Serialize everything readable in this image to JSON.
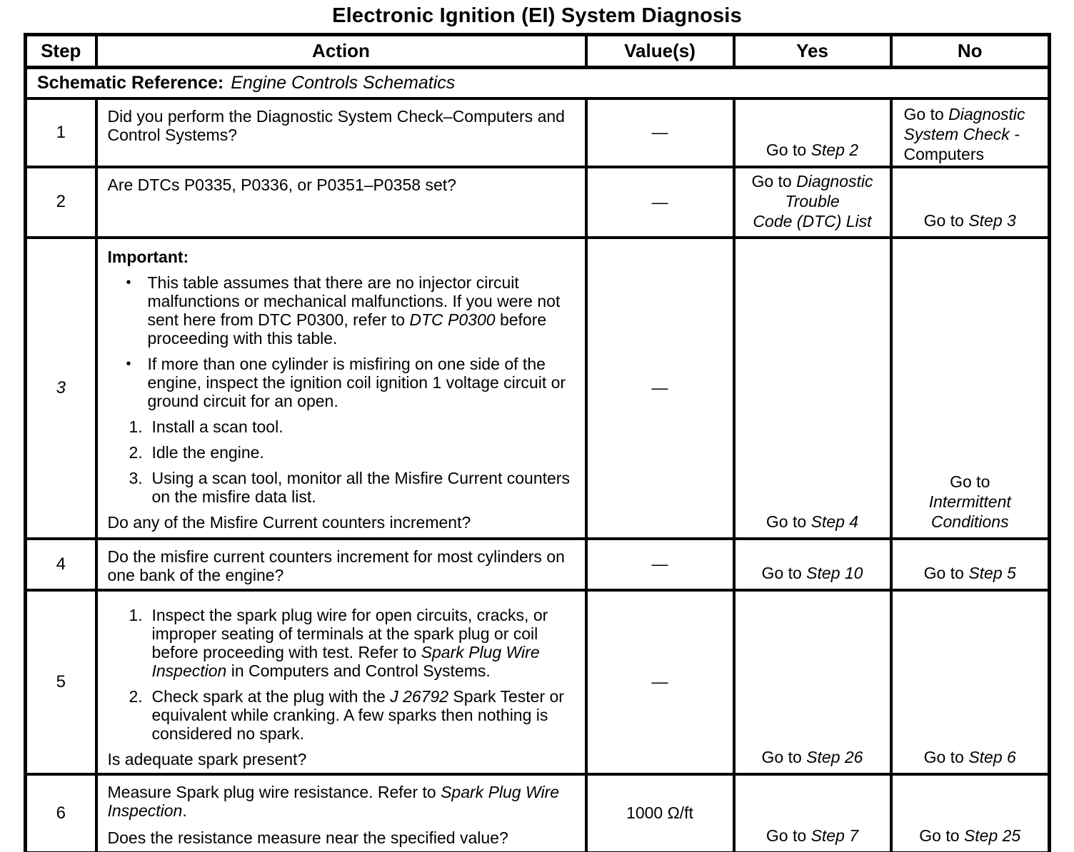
{
  "title": "Electronic Ignition (EI) System Diagnosis",
  "table": {
    "headers": [
      "Step",
      "Action",
      "Value(s)",
      "Yes",
      "No"
    ],
    "schematic": {
      "label": "Schematic Reference:",
      "value": "Engine Controls Schematics"
    },
    "rows": [
      {
        "step": "1",
        "action": [
          {
            "type": "p",
            "segments": [
              {
                "t": "Did you perform the Diagnostic System Check–Computers and Control  Systems?"
              }
            ]
          }
        ],
        "value": [
          {
            "t": "—"
          }
        ],
        "yes": [
          {
            "t": "Go to "
          },
          {
            "t": "Step 2",
            "i": true
          }
        ],
        "no": [
          {
            "t": "Go to "
          },
          {
            "t": "Diagnostic System Check -",
            "i": true
          },
          {
            "br": true
          },
          {
            "t": "Computers"
          }
        ]
      },
      {
        "step": "2",
        "action": [
          {
            "type": "p",
            "segments": [
              {
                "t": "Are DTCs P0335, P0336, or P0351–P0358 set?"
              }
            ]
          }
        ],
        "value": [
          {
            "t": "—"
          }
        ],
        "yes": [
          {
            "t": "Go to "
          },
          {
            "t": "Diagnostic",
            "i": true
          },
          {
            "br": true
          },
          {
            "t": "Trouble",
            "i": true
          },
          {
            "br": true
          },
          {
            "t": "Code (DTC) List",
            "i": true
          }
        ],
        "no": [
          {
            "t": "Go to "
          },
          {
            "t": "Step 3",
            "i": true
          }
        ]
      },
      {
        "step": "3",
        "action": [
          {
            "type": "heading",
            "segments": [
              {
                "t": "Important:"
              }
            ]
          },
          {
            "type": "bullet",
            "segments": [
              {
                "t": "This table assumes that there are no injector circuit malfunctions or mechanical malfunctions. If you were not sent here from DTC P0300, refer to "
              },
              {
                "t": "DTC P0300",
                "i": true
              },
              {
                "t": " before proceeding with this table."
              }
            ]
          },
          {
            "type": "bullet",
            "segments": [
              {
                "t": "If more than one cylinder is misfiring on one side of the engine, inspect the ignition coil ignition 1 voltage circuit or ground circuit for an open."
              }
            ]
          },
          {
            "type": "num",
            "num": "1.",
            "segments": [
              {
                "t": "Install a scan tool."
              }
            ]
          },
          {
            "type": "num",
            "num": "2.",
            "segments": [
              {
                "t": "Idle the engine."
              }
            ]
          },
          {
            "type": "num",
            "num": "3.",
            "segments": [
              {
                "t": "Using a scan tool, monitor all the Misfire Current counters on the misfire data list."
              }
            ]
          },
          {
            "type": "q",
            "segments": [
              {
                "t": "Do any of the Misfire Current counters increment?"
              }
            ]
          }
        ],
        "value": [
          {
            "t": "—"
          }
        ],
        "yes": [
          {
            "t": "Go to "
          },
          {
            "t": "Step 4",
            "i": true
          }
        ],
        "no": [
          {
            "t": "Go to"
          },
          {
            "br": true
          },
          {
            "t": "Intermittent",
            "i": true
          },
          {
            "br": true
          },
          {
            "t": "Conditions",
            "i": true
          }
        ]
      },
      {
        "step": "4",
        "action": [
          {
            "type": "p",
            "segments": [
              {
                "t": "Do the misfire current counters increment for most cylinders on one bank of the engine?"
              }
            ]
          }
        ],
        "value": [
          {
            "t": "—"
          }
        ],
        "yes": [
          {
            "t": "Go to "
          },
          {
            "t": "Step  10",
            "i": true
          }
        ],
        "no": [
          {
            "t": "Go to "
          },
          {
            "t": "Step 5",
            "i": true
          }
        ]
      },
      {
        "step": "5",
        "action": [
          {
            "type": "num",
            "num": "1.",
            "segments": [
              {
                "t": "Inspect the spark plug wire for open circuits, cracks, or improper seating of terminals at the spark plug or coil before proceeding with test. Refer to "
              },
              {
                "t": "Spark Plug Wire Inspection",
                "i": true
              },
              {
                "t": " in Computers and Control Systems."
              }
            ]
          },
          {
            "type": "num",
            "num": "2.",
            "segments": [
              {
                "t": "Check spark at the plug with the "
              },
              {
                "t": "J 26792",
                "i": true
              },
              {
                "t": " Spark Tester or equivalent while cranking. A few sparks then nothing is considered no spark."
              }
            ]
          },
          {
            "type": "q",
            "segments": [
              {
                "t": "Is adequate spark present?"
              }
            ]
          }
        ],
        "value": [
          {
            "t": "—"
          }
        ],
        "yes": [
          {
            "t": "Go to "
          },
          {
            "t": "Step 26",
            "i": true
          }
        ],
        "no": [
          {
            "t": "Go to "
          },
          {
            "t": "Step 6",
            "i": true
          }
        ]
      },
      {
        "step": "6",
        "action": [
          {
            "type": "p",
            "segments": [
              {
                "t": "Measure Spark plug wire resistance. Refer to "
              },
              {
                "t": "Spark Plug Wire Inspection",
                "i": true
              },
              {
                "t": "."
              }
            ]
          },
          {
            "type": "q",
            "segments": [
              {
                "t": "Does the resistance measure near the specified value?"
              }
            ]
          }
        ],
        "value": [
          {
            "t": "1000 Ω/ft"
          }
        ],
        "yes": [
          {
            "t": "Go to "
          },
          {
            "t": "Step 7",
            "i": true
          }
        ],
        "no": [
          {
            "t": "Go to "
          },
          {
            "t": "Step 25",
            "i": true
          }
        ]
      }
    ]
  }
}
